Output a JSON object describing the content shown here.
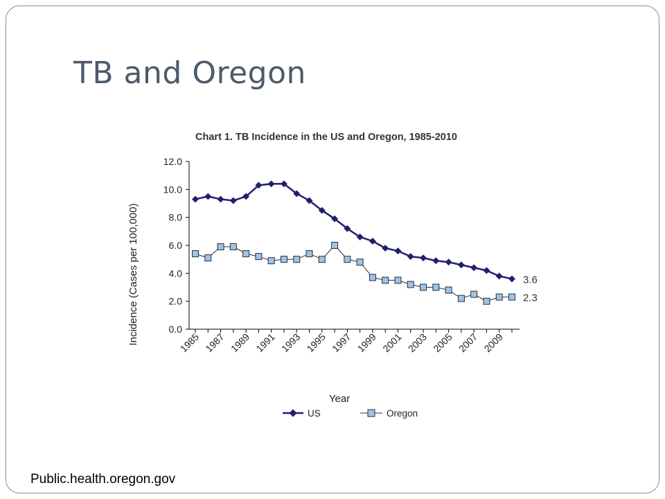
{
  "slide": {
    "title": "TB and Oregon",
    "source": "Public.health.oregon.gov"
  },
  "colors": {
    "us_line": "#1f1f6e",
    "oregon_line": "#2b2b3a",
    "oregon_marker_fill": "#9cc4e6",
    "axis": "#000000",
    "title_text": "#4d5a6a"
  },
  "chart_data": {
    "type": "line",
    "title": "Chart 1. TB Incidence in the US and Oregon, 1985-2010",
    "xlabel": "Year",
    "ylabel": "Incidence (Cases per 100,000)",
    "ylim": [
      0,
      12
    ],
    "yticks": [
      "0.0",
      "2.0",
      "4.0",
      "6.0",
      "8.0",
      "10.0",
      "12.0"
    ],
    "xticks": [
      "1985",
      "1987",
      "1989",
      "1991",
      "1993",
      "1995",
      "1997",
      "1999",
      "2001",
      "2003",
      "2005",
      "2007",
      "2009"
    ],
    "x": [
      1985,
      1986,
      1987,
      1988,
      1989,
      1990,
      1991,
      1992,
      1993,
      1994,
      1995,
      1996,
      1997,
      1998,
      1999,
      2000,
      2001,
      2002,
      2003,
      2004,
      2005,
      2006,
      2007,
      2008,
      2009,
      2010
    ],
    "series": [
      {
        "name": "US",
        "marker": "diamond",
        "values": [
          9.3,
          9.5,
          9.3,
          9.2,
          9.5,
          10.3,
          10.4,
          10.4,
          9.7,
          9.2,
          8.5,
          7.9,
          7.2,
          6.6,
          6.3,
          5.8,
          5.6,
          5.2,
          5.1,
          4.9,
          4.8,
          4.6,
          4.4,
          4.2,
          3.8,
          3.6
        ],
        "end_label": "3.6"
      },
      {
        "name": "Oregon",
        "marker": "square",
        "values": [
          5.4,
          5.1,
          5.9,
          5.9,
          5.4,
          5.2,
          4.9,
          5.0,
          5.0,
          5.4,
          5.0,
          6.0,
          5.0,
          4.8,
          3.7,
          3.5,
          3.5,
          3.2,
          3.0,
          3.0,
          2.8,
          2.2,
          2.5,
          2.0,
          2.3,
          2.3
        ],
        "end_label": "2.3"
      }
    ],
    "legend_placement": "bottom",
    "grid": false
  }
}
